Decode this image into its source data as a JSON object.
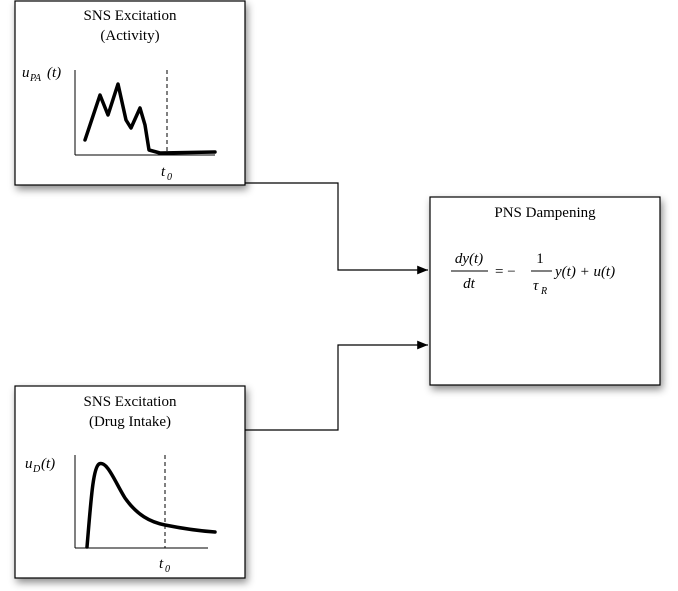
{
  "nodes": [
    {
      "title_lines": [
        "SNS Excitation",
        "(Activity)"
      ],
      "y_label": {
        "base": "u",
        "subscript": "PA",
        "suffix": "(t)"
      },
      "x_label": {
        "base": "t",
        "subscript": "0"
      }
    },
    {
      "title_lines": [
        "SNS Excitation",
        "(Drug Intake)"
      ],
      "y_label": {
        "base": "u",
        "subscript": "D",
        "suffix": "(t)"
      },
      "x_label": {
        "base": "t",
        "subscript": "0"
      }
    },
    {
      "title": "PNS Dampening",
      "equation": {
        "numerator": "dy(t)",
        "denominator": "dt",
        "equals": "= −",
        "one": "1",
        "tau": "τ",
        "tau_sub": "R",
        "rest": "y(t) + u(t)"
      }
    }
  ]
}
